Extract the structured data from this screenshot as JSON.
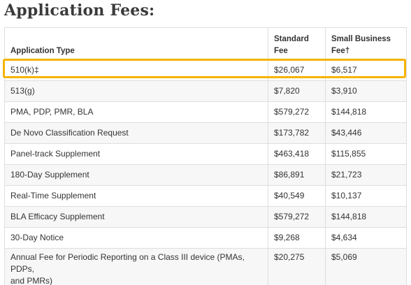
{
  "page": {
    "title": "Application Fees:"
  },
  "table": {
    "headers": {
      "application_type": "Application Type",
      "standard_fee_line1": "Standard",
      "standard_fee_line2": "Fee",
      "small_business_line1": "Small Business",
      "small_business_line2": "Fee†"
    },
    "rows": [
      {
        "type": "510(k)‡",
        "standard": "$26,067",
        "small": "$6,517"
      },
      {
        "type": "513(g)",
        "standard": "$7,820",
        "small": "$3,910"
      },
      {
        "type": "PMA, PDP, PMR, BLA",
        "standard": "$579,272",
        "small": "$144,818"
      },
      {
        "type": "De Novo Classification Request",
        "standard": "$173,782",
        "small": "$43,446"
      },
      {
        "type": "Panel-track Supplement",
        "standard": "$463,418",
        "small": "$115,855"
      },
      {
        "type": "180-Day Supplement",
        "standard": "$86,891",
        "small": "$21,723"
      },
      {
        "type": "Real-Time Supplement",
        "standard": "$40,549",
        "small": "$10,137"
      },
      {
        "type": "BLA Efficacy Supplement",
        "standard": "$579,272",
        "small": "$144,818"
      },
      {
        "type": "30-Day Notice",
        "standard": "$9,268",
        "small": "$4,634"
      },
      {
        "type_line1": "Annual Fee for Periodic Reporting on a Class III device (PMAs, PDPs,",
        "type_line2": "and PMRs)",
        "standard": "$20,275",
        "small": "$5,069"
      }
    ]
  },
  "highlight": {
    "color": "#f4b400",
    "row": "510(k)‡"
  }
}
